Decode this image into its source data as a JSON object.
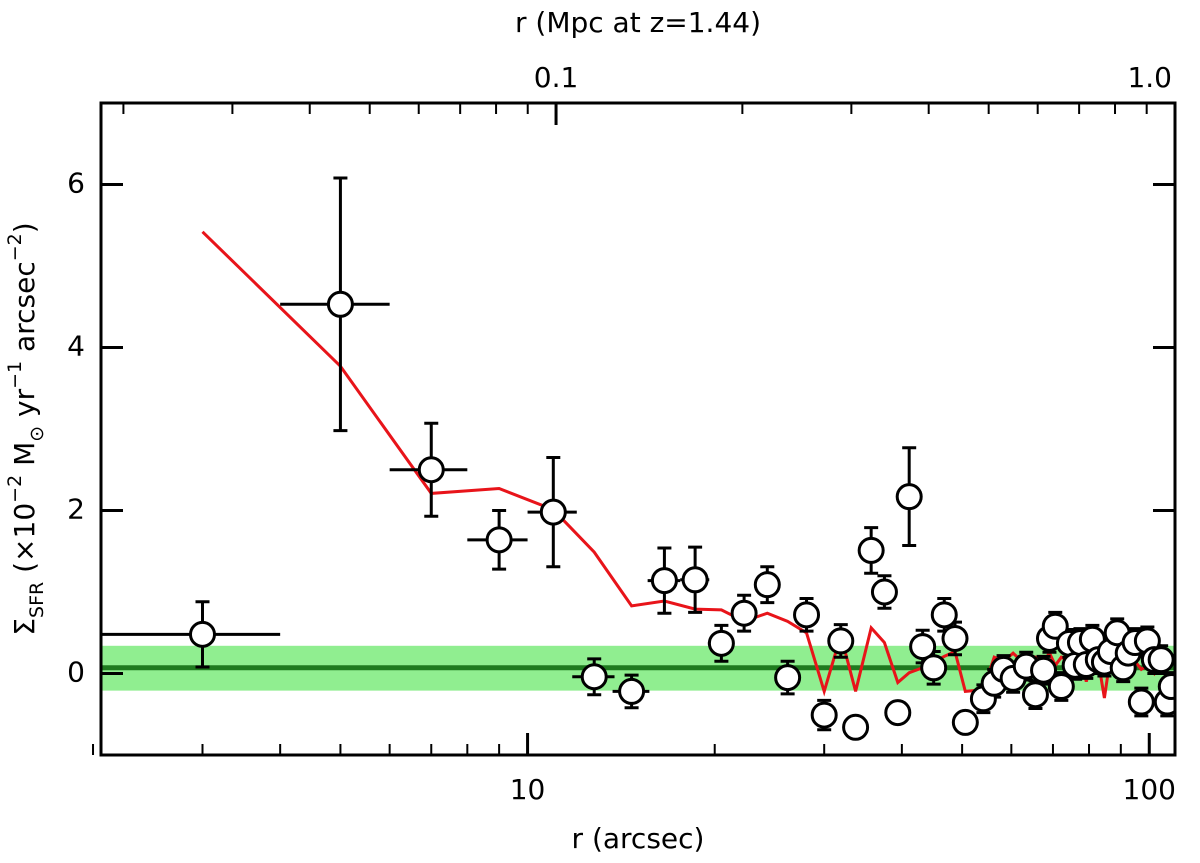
{
  "chart_data": {
    "type": "scatter",
    "xlabel": "r (arcsec)",
    "x2label": "r (Mpc at z=1.44)",
    "ylabel": [
      {
        "text": "Σ"
      },
      {
        "text": "SFR",
        "style": "sub"
      },
      {
        "text": " (×10"
      },
      {
        "text": "−2",
        "style": "sup"
      },
      {
        "text": " M"
      },
      {
        "text": "⊙",
        "style": "sub"
      },
      {
        "text": " yr"
      },
      {
        "text": "−1",
        "style": "sup"
      },
      {
        "text": " arcsec"
      },
      {
        "text": "−2",
        "style": "sup"
      },
      {
        "text": ")"
      }
    ],
    "xscale": "log",
    "xlim": [
      2.06,
      110
    ],
    "xticks": [
      10,
      100
    ],
    "xminorticks": [
      2,
      3,
      4,
      5,
      6,
      7,
      8,
      9,
      20,
      30,
      40,
      50,
      60,
      70,
      80,
      90
    ],
    "x2lim": [
      0.0184,
      1
    ],
    "x2ticks": [
      {
        "value": 0.1,
        "label": "0.1"
      },
      {
        "value": 1,
        "label": "1.0"
      }
    ],
    "x2minorticks": [
      0.02,
      0.03,
      0.04,
      0.05,
      0.06,
      0.07,
      0.08,
      0.09,
      0.2,
      0.3,
      0.4,
      0.5,
      0.6,
      0.7,
      0.8,
      0.9
    ],
    "ylim": [
      -1,
      7
    ],
    "yticks": [
      0,
      2,
      4,
      6
    ],
    "background": {
      "value": 0.07,
      "low": -0.21,
      "high": 0.34,
      "color": "#1f7a1f",
      "band_color": "#90ee90"
    },
    "x": [
      3,
      5,
      7,
      9,
      11,
      12.8,
      14.7,
      16.6,
      18.6,
      20.5,
      22.3,
      24.3,
      26.2,
      28.1,
      30.0,
      31.9,
      33.7,
      35.7,
      37.5,
      39.4,
      41.1,
      43.2,
      45.0,
      46.8,
      48.7,
      50.6,
      54.1,
      56.3,
      58.3,
      60.4,
      63.4,
      65.6,
      67.6,
      69.1,
      70.6,
      72.2,
      74.4,
      76.0,
      77.5,
      79.2,
      81.0,
      82.8,
      84.7,
      86.6,
      88.8,
      90.8,
      92.5,
      94.9,
      97.1,
      99.3,
      101.9,
      104.5,
      106.9,
      108.5
    ],
    "series": [
      {
        "type": "scatter",
        "color": "#000000",
        "values": [
          0.48,
          4.53,
          2.5,
          1.64,
          1.98,
          -0.04,
          -0.22,
          1.14,
          1.15,
          0.37,
          0.74,
          1.09,
          -0.05,
          0.72,
          -0.51,
          0.4,
          -0.66,
          1.51,
          1.0,
          -0.48,
          2.17,
          0.33,
          0.07,
          0.72,
          0.43,
          -0.6,
          -0.31,
          -0.12,
          0.05,
          -0.06,
          0.09,
          -0.26,
          0.04,
          0.43,
          0.58,
          -0.16,
          0.37,
          0.1,
          0.38,
          0.11,
          0.42,
          0.17,
          0.14,
          0.27,
          0.5,
          0.07,
          0.25,
          0.38,
          -0.35,
          0.4,
          0.17,
          0.17,
          -0.35,
          -0.16
        ],
        "yerr": [
          0.4,
          1.55,
          0.57,
          0.36,
          0.67,
          0.22,
          0.2,
          0.4,
          0.4,
          0.22,
          0.22,
          0.22,
          0.2,
          0.2,
          0.18,
          0.2,
          0.1,
          0.28,
          0.2,
          0.1,
          0.6,
          0.2,
          0.2,
          0.2,
          0.2,
          0.1,
          0.17,
          0.17,
          0.17,
          0.17,
          0.17,
          0.17,
          0.17,
          0.17,
          0.17,
          0.17,
          0.17,
          0.17,
          0.17,
          0.17,
          0.17,
          0.17,
          0.17,
          0.17,
          0.17,
          0.17,
          0.17,
          0.17,
          0.17,
          0.17,
          0.17,
          0.17,
          0.17,
          0.17
        ],
        "xerr": [
          1,
          1,
          1,
          1,
          1,
          1,
          1,
          1,
          1,
          1,
          1,
          1,
          1,
          1,
          1,
          1,
          1,
          1,
          1,
          1,
          1,
          1,
          1,
          1,
          1,
          1,
          1,
          1,
          1,
          1,
          1,
          1,
          1,
          1,
          1,
          1,
          1,
          1,
          1,
          1,
          1,
          1,
          1,
          1,
          1,
          1,
          1,
          1,
          1,
          1,
          1,
          1,
          1,
          1
        ]
      },
      {
        "type": "line",
        "color": "#e8141a",
        "values": [
          5.42,
          3.77,
          2.21,
          2.27,
          2.01,
          1.49,
          0.83,
          0.89,
          0.79,
          0.78,
          0.64,
          0.74,
          0.64,
          0.5,
          -0.22,
          0.47,
          -0.22,
          0.56,
          0.38,
          -0.11,
          0.01,
          0.07,
          0.14,
          0.21,
          0.27,
          -0.22,
          -0.2,
          0.2,
          0.15,
          0.25,
          0.1,
          0.2,
          0.15,
          0.25,
          0.1,
          0.2,
          0.15,
          0.25,
          0.2,
          -0.1,
          0.2,
          0.15,
          -0.3,
          0.2,
          0.1,
          0.2,
          0.0,
          0.15,
          0.05,
          0.1,
          0.0,
          0.15,
          -0.1,
          0.0
        ]
      }
    ]
  }
}
